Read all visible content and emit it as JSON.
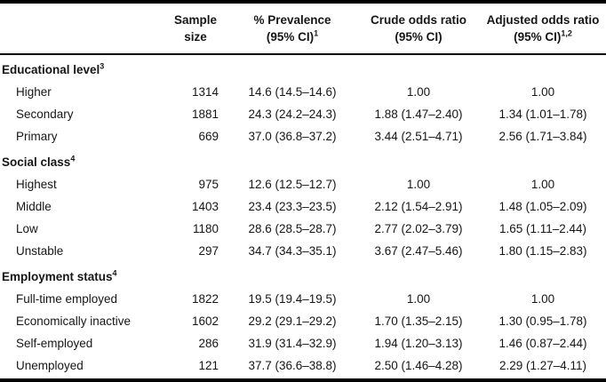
{
  "table": {
    "header": {
      "columns": [
        {
          "line1": "Sample",
          "line2": "size",
          "sup": ""
        },
        {
          "line1": "% Prevalence",
          "line2": "(95% CI)",
          "sup": "1"
        },
        {
          "line1": "Crude odds ratio",
          "line2": "(95% CI)",
          "sup": ""
        },
        {
          "line1": "Adjusted odds ratio",
          "line2": "(95% CI)",
          "sup": "1,2"
        }
      ]
    },
    "sections": [
      {
        "label": "Educational level",
        "sup": "3",
        "rows": [
          {
            "label": "Higher",
            "n": "1314",
            "prev": "14.6 (14.5–14.6)",
            "crude": "1.00",
            "adj": "1.00"
          },
          {
            "label": "Secondary",
            "n": "1881",
            "prev": "24.3 (24.2–24.3)",
            "crude": "1.88 (1.47–2.40)",
            "adj": "1.34 (1.01–1.78)"
          },
          {
            "label": "Primary",
            "n": "669",
            "prev": "37.0 (36.8–37.2)",
            "crude": "3.44 (2.51–4.71)",
            "adj": "2.56 (1.71–3.84)"
          }
        ]
      },
      {
        "label": "Social class",
        "sup": "4",
        "rows": [
          {
            "label": "Highest",
            "n": "975",
            "prev": "12.6 (12.5–12.7)",
            "crude": "1.00",
            "adj": "1.00"
          },
          {
            "label": "Middle",
            "n": "1403",
            "prev": "23.4 (23.3–23.5)",
            "crude": "2.12 (1.54–2.91)",
            "adj": "1.48 (1.05–2.09)"
          },
          {
            "label": "Low",
            "n": "1180",
            "prev": "28.6 (28.5–28.7)",
            "crude": "2.77 (2.02–3.79)",
            "adj": "1.65 (1.11–2.44)"
          },
          {
            "label": "Unstable",
            "n": "297",
            "prev": "34.7 (34.3–35.1)",
            "crude": "3.67 (2.47–5.46)",
            "adj": "1.80 (1.15–2.83)"
          }
        ]
      },
      {
        "label": "Employment status",
        "sup": "4",
        "rows": [
          {
            "label": "Full-time employed",
            "n": "1822",
            "prev": "19.5 (19.4–19.5)",
            "crude": "1.00",
            "adj": "1.00"
          },
          {
            "label": "Economically inactive",
            "n": "1602",
            "prev": "29.2 (29.1–29.2)",
            "crude": "1.70 (1.35–2.15)",
            "adj": "1.30 (0.95–1.78)"
          },
          {
            "label": "Self-employed",
            "n": "286",
            "prev": "31.9 (31.4–32.9)",
            "crude": "1.94 (1.20–3.13)",
            "adj": "1.46 (0.87–2.44)"
          },
          {
            "label": "Unemployed",
            "n": "121",
            "prev": "37.7 (36.6–38.8)",
            "crude": "2.50 (1.46–4.28)",
            "adj": "2.29 (1.27–4.11)"
          }
        ]
      }
    ]
  }
}
